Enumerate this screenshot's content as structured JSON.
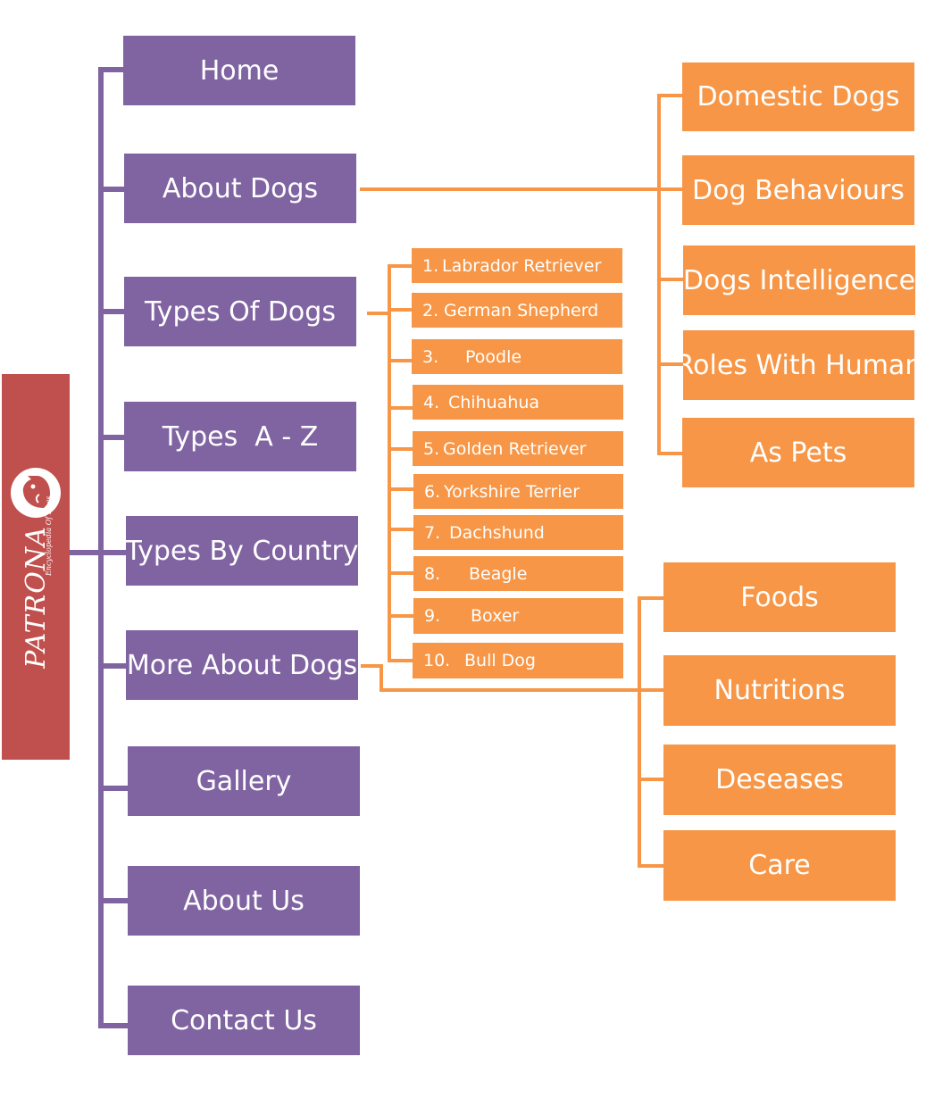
{
  "logo": {
    "title": "PATRONA",
    "subtitle": "Encyclopedia Of Dogs",
    "icon": "dog-head-icon",
    "color": "#c0504d"
  },
  "colors": {
    "menu_purple": "#8064a2",
    "submenu_orange": "#f79646",
    "purple_line": "#8064a2",
    "orange_line": "#f79646"
  },
  "main_menu": [
    {
      "label": "Home"
    },
    {
      "label": "About Dogs"
    },
    {
      "label": "Types Of Dogs"
    },
    {
      "label": "Types  A - Z"
    },
    {
      "label": "Types By Country"
    },
    {
      "label": "More About Dogs"
    },
    {
      "label": "Gallery"
    },
    {
      "label": "About Us"
    },
    {
      "label": "Contact Us"
    }
  ],
  "about_dogs_submenu": [
    {
      "label": "Domestic Dogs"
    },
    {
      "label": "Dog Behaviours"
    },
    {
      "label": "Dogs Intelligence"
    },
    {
      "label": "Roles With Human"
    },
    {
      "label": "As Pets"
    }
  ],
  "types_of_dogs_submenu": [
    {
      "num": "1.",
      "label": "Labrador Retriever"
    },
    {
      "num": "2.",
      "label": "German Shepherd"
    },
    {
      "num": "3.",
      "label": "Poodle"
    },
    {
      "num": "4.",
      "label": "Chihuahua"
    },
    {
      "num": "5.",
      "label": "Golden Retriever"
    },
    {
      "num": "6.",
      "label": "Yorkshire Terrier"
    },
    {
      "num": "7.",
      "label": "Dachshund"
    },
    {
      "num": "8.",
      "label": "Beagle"
    },
    {
      "num": "9.",
      "label": "Boxer"
    },
    {
      "num": "10.",
      "label": "Bull Dog"
    }
  ],
  "more_about_dogs_submenu": [
    {
      "label": "Foods"
    },
    {
      "label": "Nutritions"
    },
    {
      "label": "Deseases"
    },
    {
      "label": "Care"
    }
  ]
}
